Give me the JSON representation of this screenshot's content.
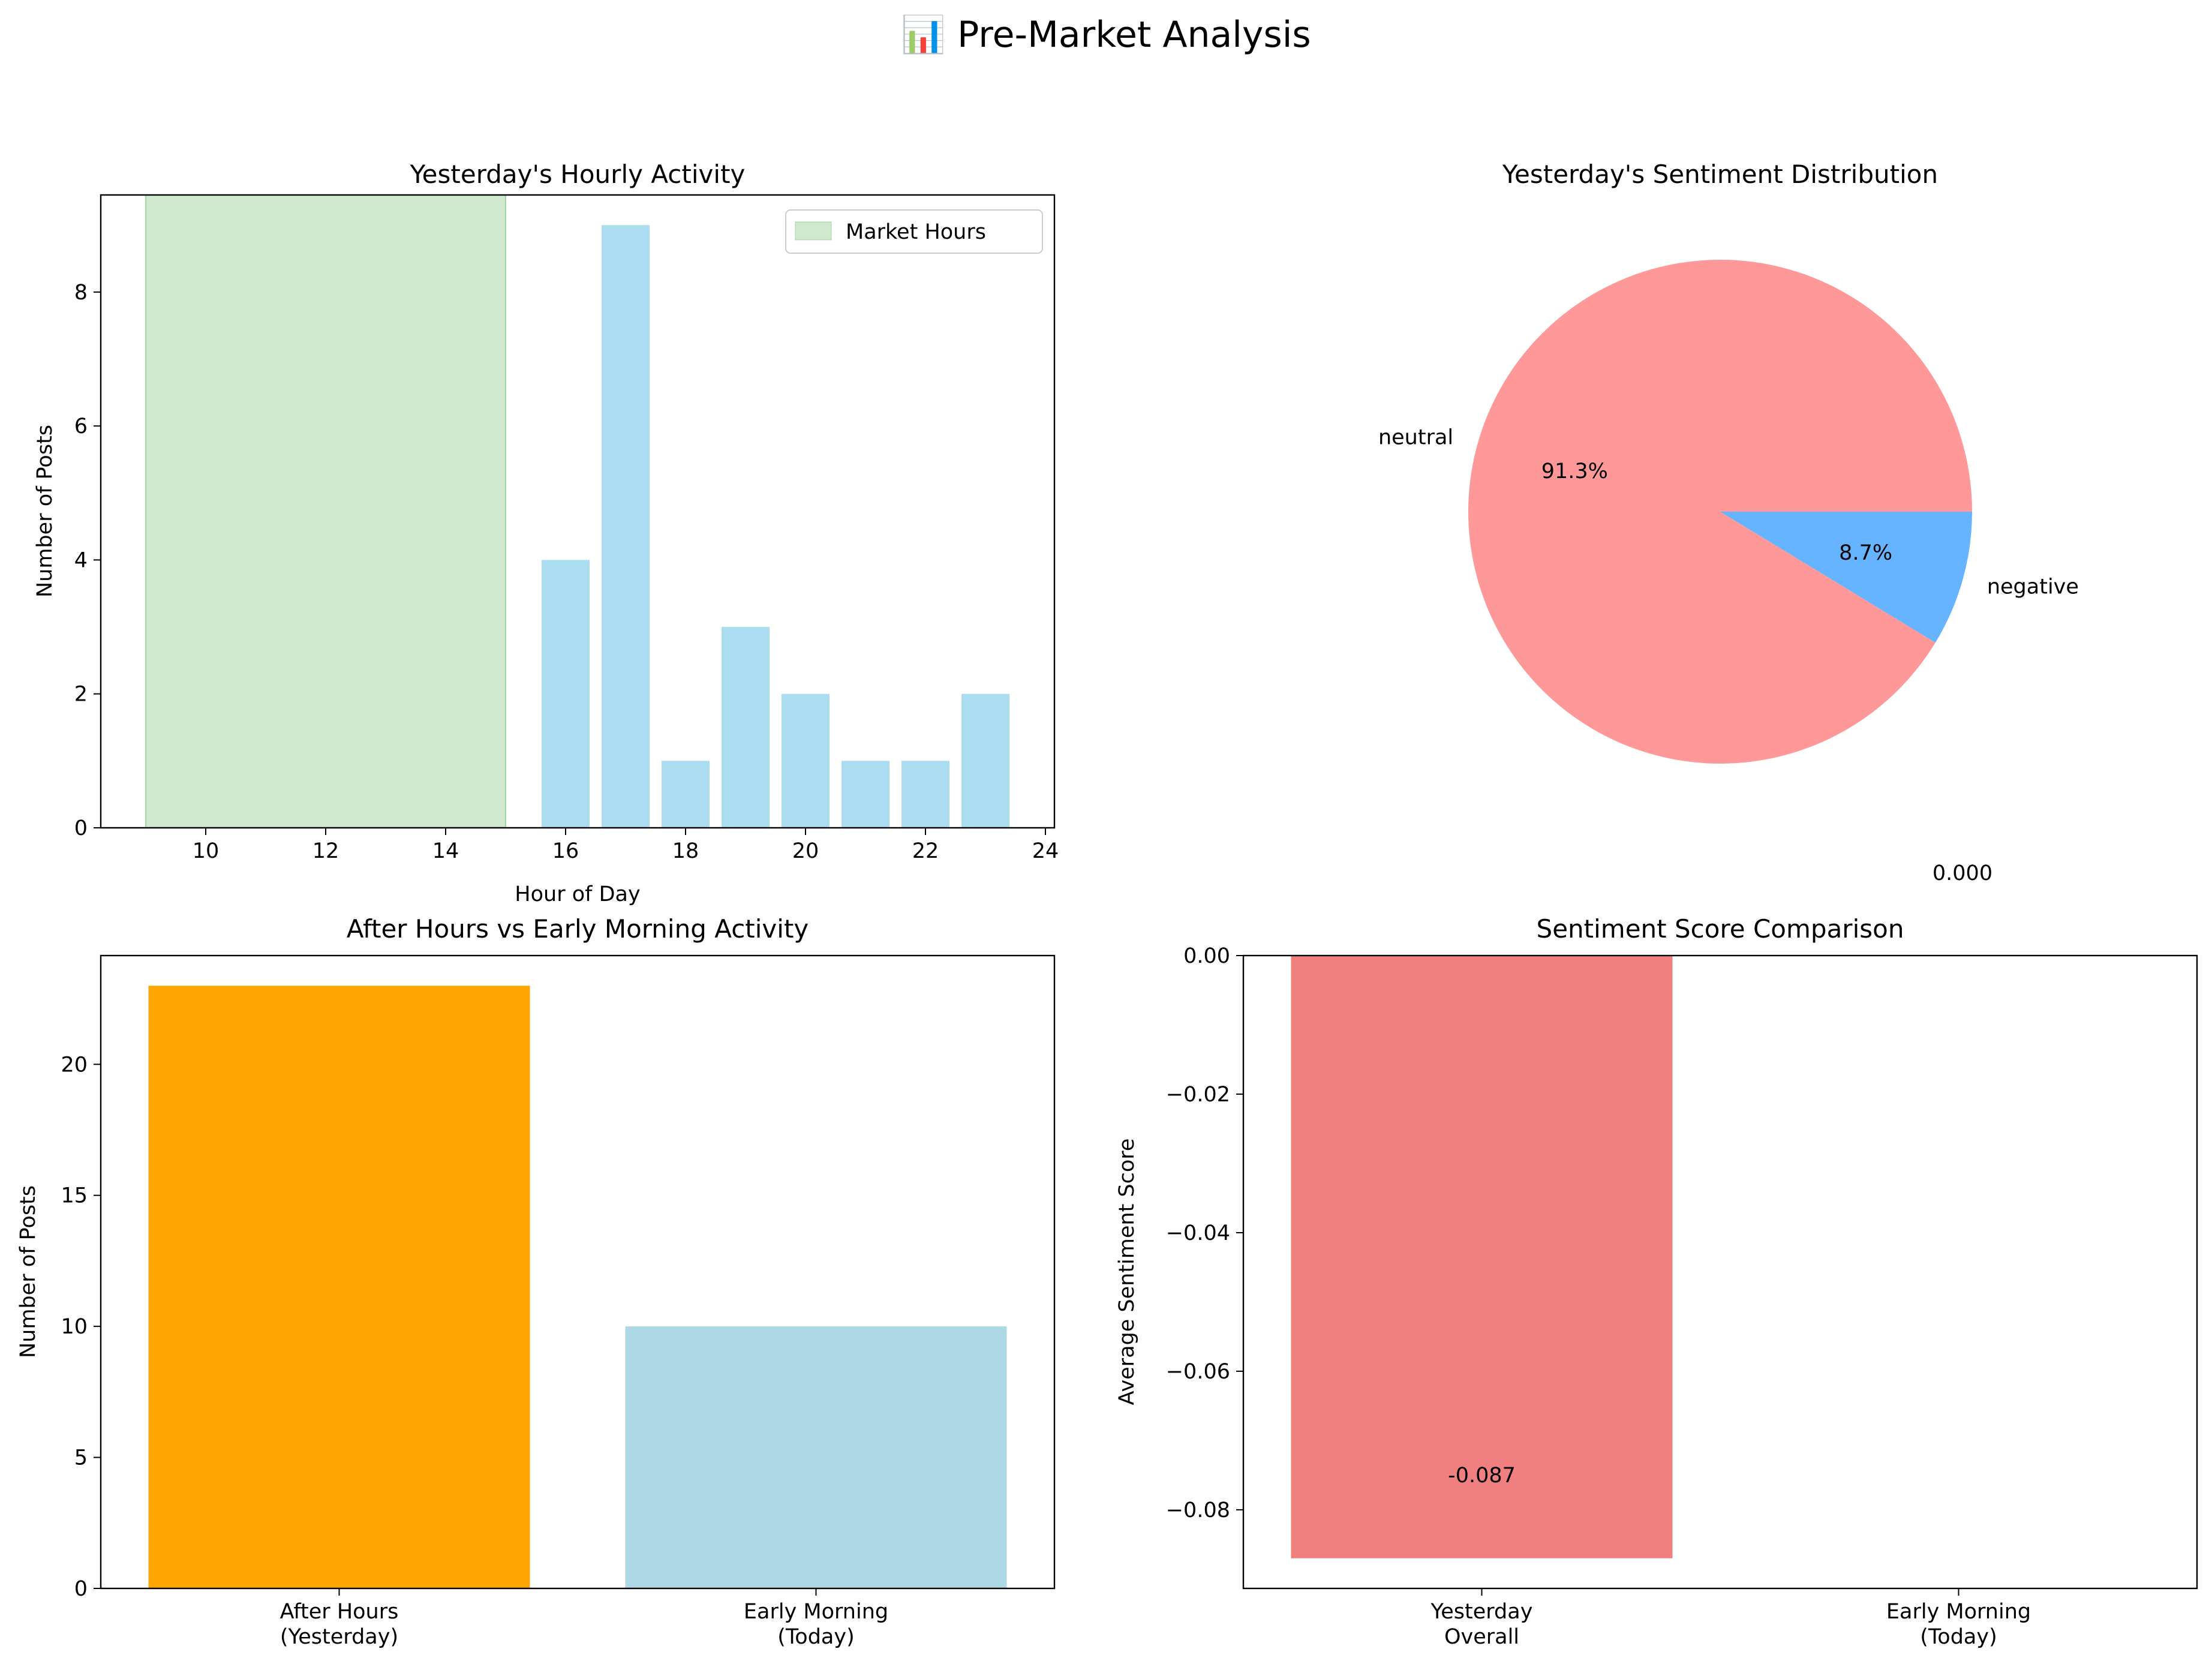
{
  "figure": {
    "title": "📊 Pre-Market Analysis"
  },
  "chart_data": [
    {
      "type": "bar",
      "title": "Yesterday's Hourly Activity",
      "xlabel": "Hour of Day",
      "ylabel": "Number of Posts",
      "x": [
        16,
        17,
        18,
        19,
        20,
        21,
        22,
        23
      ],
      "values": [
        4,
        9,
        1,
        3,
        2,
        1,
        1,
        2
      ],
      "xlim": [
        8.25,
        24.15
      ],
      "ylim": [
        0,
        9.45
      ],
      "xticks": [
        10,
        12,
        14,
        16,
        18,
        20,
        22,
        24
      ],
      "yticks": [
        0,
        2,
        4,
        6,
        8
      ],
      "bar_color": "#87CEEB",
      "shaded_region": {
        "label": "Market Hours",
        "x_start": 9,
        "x_end": 15,
        "color": "#2ca02c"
      },
      "legend": {
        "position": "upper right",
        "entries": [
          "Market Hours"
        ]
      },
      "grid": false
    },
    {
      "type": "pie",
      "title": "Yesterday's Sentiment Distribution",
      "labels": [
        "neutral",
        "negative"
      ],
      "values": [
        91.3,
        8.7
      ],
      "autopct": [
        "91.3%",
        "8.7%"
      ],
      "colors": [
        "#ff9999",
        "#66b3ff"
      ],
      "stray_label": "0.000"
    },
    {
      "type": "bar",
      "title": "After Hours vs Early Morning Activity",
      "xlabel": "",
      "ylabel": "Number of Posts",
      "categories": [
        [
          "After Hours",
          "(Yesterday)"
        ],
        [
          "Early Morning",
          "(Today)"
        ]
      ],
      "values": [
        23,
        10
      ],
      "colors": [
        "#FFA500",
        "#ADD8E6"
      ],
      "ylim": [
        0,
        24.15
      ],
      "yticks": [
        0,
        5,
        10,
        15,
        20
      ],
      "grid": false
    },
    {
      "type": "bar",
      "title": "Sentiment Score Comparison",
      "xlabel": "",
      "ylabel": "Average Sentiment Score",
      "categories": [
        [
          "Yesterday",
          "Overall"
        ],
        [
          "Early Morning",
          "(Today)"
        ]
      ],
      "values": [
        -0.087,
        0.0
      ],
      "value_labels": [
        "-0.087",
        "0.000"
      ],
      "colors": [
        "#F08080",
        "#90EE90"
      ],
      "ylim": [
        -0.09135,
        0.0
      ],
      "yticks": [
        0.0,
        -0.02,
        -0.04,
        -0.06,
        -0.08
      ],
      "ytick_labels": [
        "0.00",
        "−0.02",
        "−0.04",
        "−0.06",
        "−0.08"
      ],
      "grid": false
    }
  ]
}
